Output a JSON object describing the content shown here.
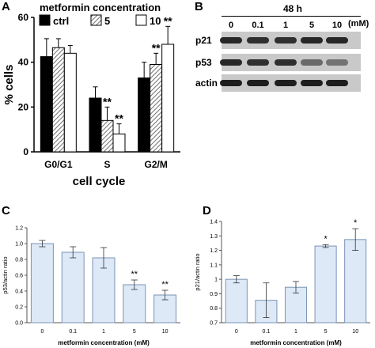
{
  "panel_letters": {
    "a": "A",
    "b": "B",
    "c": "C",
    "d": "D"
  },
  "colors": {
    "ctrl": "#000000",
    "dose5_hatch": "#9a9a9a",
    "dose10": "#ffffff",
    "bar_fill_light": "#dde9f7",
    "bar_stroke_light": "#7a93b5"
  },
  "chart_data": [
    {
      "panel": "A",
      "type": "bar",
      "title": "metformin concentration",
      "xlabel": "cell cycle",
      "ylabel": "% cells",
      "ylim": [
        0,
        60
      ],
      "yticks": [
        0,
        20,
        40,
        60
      ],
      "categories": [
        "G0/G1",
        "S",
        "G2/M"
      ],
      "legend_position": "top",
      "series": [
        {
          "name": "ctrl",
          "values": [
            42.5,
            24,
            33
          ],
          "errors": [
            8,
            5,
            7
          ],
          "marks": [
            "",
            "",
            ""
          ]
        },
        {
          "name": "5",
          "values": [
            46.5,
            14,
            39
          ],
          "errors": [
            4,
            6,
            5
          ],
          "marks": [
            "",
            "**",
            "**"
          ]
        },
        {
          "name": "10",
          "values": [
            44,
            8,
            48
          ],
          "errors": [
            3.5,
            4.5,
            8
          ],
          "marks": [
            "",
            "**",
            "**"
          ]
        }
      ]
    },
    {
      "panel": "C",
      "type": "bar",
      "xlabel": "metformin concentration (mM)",
      "ylabel": "p53/actin ratio",
      "ylim": [
        0,
        1.2
      ],
      "yticks": [
        0,
        0.2,
        0.4,
        0.6,
        0.8,
        1.0,
        1.2
      ],
      "ytick_labels": [
        "0.0",
        "0.2",
        "0.4",
        "0.6",
        "0.8",
        "1.0",
        "1.2"
      ],
      "categories": [
        "0",
        "0.1",
        "1",
        "5",
        "10"
      ],
      "values": [
        1.0,
        0.89,
        0.82,
        0.48,
        0.35
      ],
      "errors": [
        0.04,
        0.07,
        0.13,
        0.06,
        0.06
      ],
      "marks": [
        "",
        "",
        "",
        "**",
        "**"
      ]
    },
    {
      "panel": "D",
      "type": "bar",
      "xlabel": "metformin concentration (mM)",
      "ylabel": "p21/actin ratio",
      "ylim": [
        0.7,
        1.4
      ],
      "yticks": [
        0.7,
        0.8,
        0.9,
        1.0,
        1.1,
        1.2,
        1.3,
        1.4
      ],
      "ytick_labels": [
        "0.7",
        "0.8",
        "0.9",
        "1",
        "1.1",
        "1.2",
        "1.3",
        "1.4"
      ],
      "categories": [
        "0",
        "0.1",
        "1",
        "5",
        "10"
      ],
      "values": [
        1.0,
        0.855,
        0.945,
        1.23,
        1.275
      ],
      "errors": [
        0.025,
        0.12,
        0.04,
        0.01,
        0.075
      ],
      "marks": [
        "",
        "",
        "",
        "*",
        "*"
      ]
    }
  ],
  "blot": {
    "time_label": "48 h",
    "unit_label": "(mM)",
    "lanes": [
      "0",
      "0.1",
      "1",
      "5",
      "10"
    ],
    "rows": [
      {
        "label": "p21",
        "intensities": [
          0.95,
          0.9,
          0.9,
          0.95,
          0.95
        ]
      },
      {
        "label": "p53",
        "intensities": [
          0.95,
          0.9,
          0.9,
          0.55,
          0.5
        ]
      },
      {
        "label": "actin",
        "intensities": [
          1,
          1,
          1,
          1,
          1
        ]
      }
    ]
  }
}
